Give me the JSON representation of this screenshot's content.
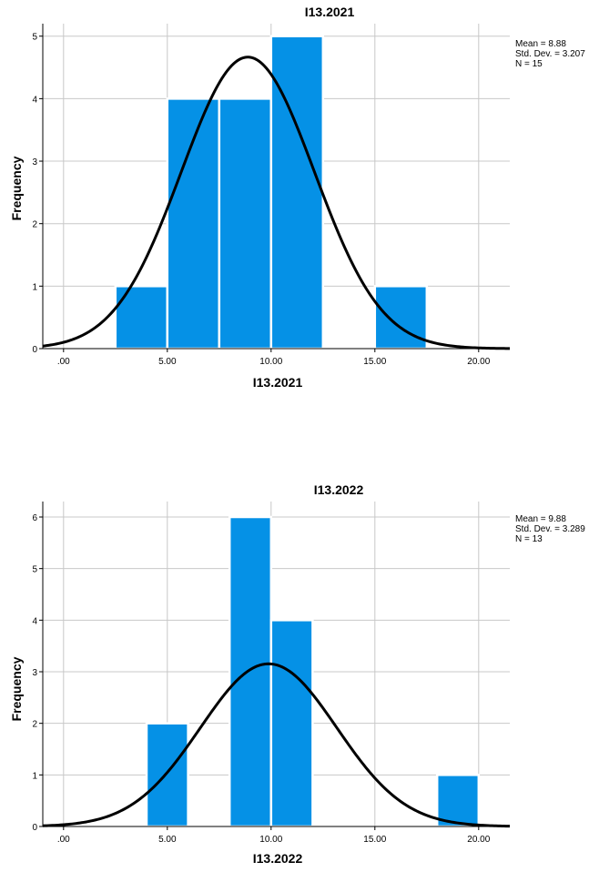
{
  "chart_data": [
    {
      "type": "bar",
      "title": "I13.2021",
      "xlabel": "I13.2021",
      "ylabel": "Frequency",
      "xlim": [
        -1,
        21.5
      ],
      "ylim": [
        0,
        5.2
      ],
      "x_ticks": [
        0,
        5,
        10,
        15,
        20
      ],
      "x_tick_labels": [
        ".00",
        "5.00",
        "10.00",
        "15.00",
        "20.00"
      ],
      "y_ticks": [
        0,
        1,
        2,
        3,
        4,
        5
      ],
      "y_tick_labels": [
        "0",
        "1",
        "2",
        "3",
        "4",
        "5"
      ],
      "bin_width": 2.5,
      "bins": [
        {
          "start": 2.5,
          "end": 5.0,
          "count": 1
        },
        {
          "start": 5.0,
          "end": 7.5,
          "count": 4
        },
        {
          "start": 7.5,
          "end": 10.0,
          "count": 4
        },
        {
          "start": 10.0,
          "end": 12.5,
          "count": 5
        },
        {
          "start": 15.0,
          "end": 17.5,
          "count": 1
        }
      ],
      "stats": {
        "mean": 8.88,
        "std_dev": 3.207,
        "n": 15
      },
      "stats_text": [
        "Mean = 8.88",
        "Std. Dev. = 3.207",
        "N = 15"
      ],
      "normal_curve": true,
      "bar_color": "#0591E6",
      "grid_color": "#C8C8C8"
    },
    {
      "type": "bar",
      "title": "I13.2022",
      "xlabel": "I13.2022",
      "ylabel": "Frequency",
      "xlim": [
        -1,
        21.5
      ],
      "ylim": [
        0,
        6.3
      ],
      "x_ticks": [
        0,
        5,
        10,
        15,
        20
      ],
      "x_tick_labels": [
        ".00",
        "5.00",
        "10.00",
        "15.00",
        "20.00"
      ],
      "y_ticks": [
        0,
        1,
        2,
        3,
        4,
        5,
        6
      ],
      "y_tick_labels": [
        "0",
        "1",
        "2",
        "3",
        "4",
        "5",
        "6"
      ],
      "bin_width": 2.0,
      "bins": [
        {
          "start": 4.0,
          "end": 6.0,
          "count": 2
        },
        {
          "start": 8.0,
          "end": 10.0,
          "count": 6
        },
        {
          "start": 10.0,
          "end": 12.0,
          "count": 4
        },
        {
          "start": 18.0,
          "end": 20.0,
          "count": 1
        }
      ],
      "stats": {
        "mean": 9.88,
        "std_dev": 3.289,
        "n": 13
      },
      "stats_text": [
        "Mean = 9.88",
        "Std. Dev. = 3.289",
        "N = 13"
      ],
      "normal_curve": true,
      "bar_color": "#0591E6",
      "grid_color": "#C8C8C8"
    }
  ]
}
